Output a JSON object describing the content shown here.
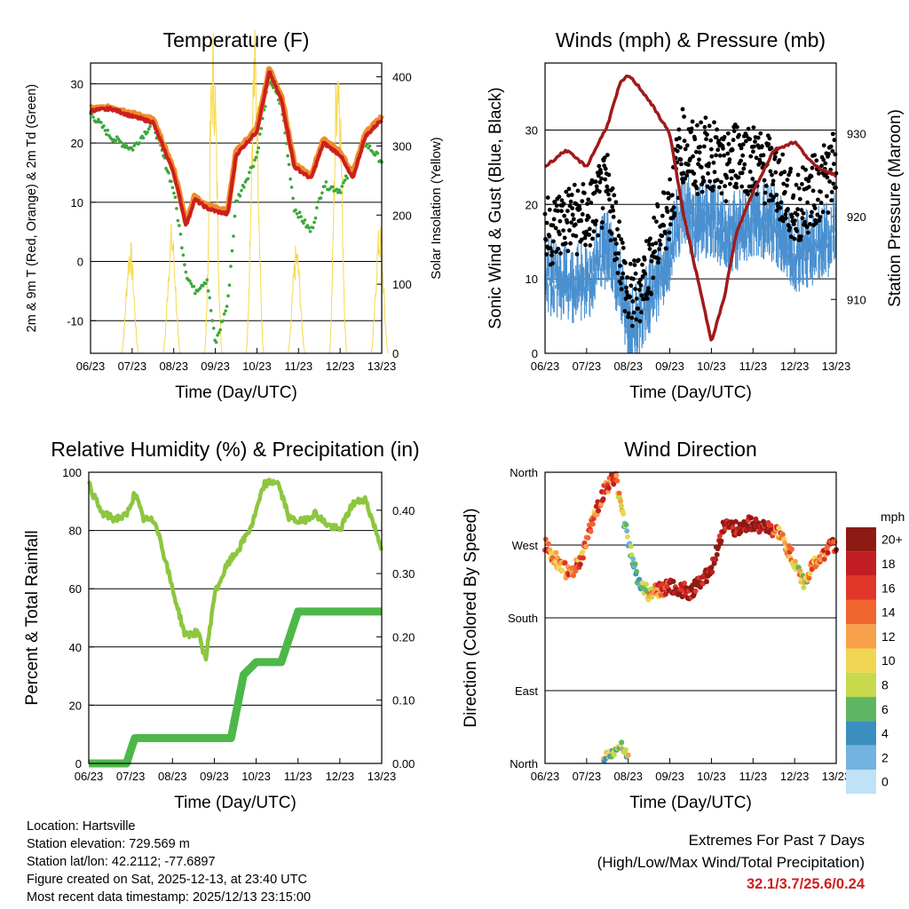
{
  "x_ticks": [
    "06/23",
    "07/23",
    "08/23",
    "09/23",
    "10/23",
    "11/23",
    "12/23",
    "13/23"
  ],
  "x_label": "Time (Day/UTC)",
  "colors": {
    "temp2m": "#cc1f1f",
    "temp9m": "#f08c2a",
    "dewpoint": "#3aa83a",
    "insolation": "#f7d94c",
    "wind": "#4a90d0",
    "gust": "#000000",
    "pressure": "#a01a1a",
    "rh": "#8dc63f",
    "precip": "#4cb848"
  },
  "panels": {
    "temperature": {
      "title": "Temperature (F)",
      "ylabel_left": "2m & 9m T (Red, Orange) & 2m Td (Green)",
      "ylabel_right": "Solar Insolation (Yellow)"
    },
    "winds": {
      "title": "Winds (mph) & Pressure (mb)",
      "ylabel_left": "Sonic Wind & Gust (Blue, Black)",
      "ylabel_right": "Station Pressure (Maroon)"
    },
    "humidity": {
      "title": "Relative Humidity (%) & Precipitation (in)",
      "ylabel_left": "Percent & Total Rainfall"
    },
    "direction": {
      "title": "Wind Direction",
      "ylabel_left": "Direction (Colored By Speed)"
    }
  },
  "chart_data": [
    {
      "type": "line",
      "title": "Temperature (F)",
      "x": [
        0,
        0.5,
        1,
        1.5,
        2,
        2.3,
        2.5,
        2.8,
        3,
        3.3,
        3.5,
        4,
        4.3,
        4.6,
        4.9,
        5.3,
        5.6,
        6,
        6.3,
        6.6,
        7
      ],
      "series": [
        {
          "name": "2m T",
          "values": [
            25.5,
            25.8,
            24.5,
            23.5,
            15,
            6,
            10.5,
            9,
            8.5,
            8,
            18,
            22,
            32,
            27,
            16,
            14,
            20,
            18,
            14,
            21,
            24
          ]
        },
        {
          "name": "9m T",
          "values": [
            25.8,
            26,
            25,
            24,
            15.5,
            6.5,
            11,
            9.5,
            9,
            8.5,
            18.5,
            22.5,
            32.5,
            27.5,
            16.5,
            14.5,
            20.5,
            18.5,
            14.5,
            21.5,
            24.5
          ]
        },
        {
          "name": "2m Td",
          "values": [
            25,
            21,
            19,
            23.5,
            12,
            -2,
            -5,
            -3,
            -14,
            -7,
            10,
            18,
            31,
            26,
            9,
            5,
            13,
            12,
            16,
            20,
            17
          ]
        }
      ],
      "right_series": {
        "name": "Solar Insolation",
        "days": [
          0.95,
          1.95,
          2.95,
          3.95,
          4.95,
          5.95,
          6.95
        ],
        "peaks": [
          140,
          160,
          400,
          400,
          135,
          400,
          160
        ]
      },
      "ylim": [
        -15.5,
        33.5
      ],
      "yticks": [
        -10,
        0,
        10,
        20,
        30
      ],
      "right_ylim": [
        0,
        420
      ],
      "right_yticks": [
        0,
        100,
        200,
        300,
        400
      ]
    },
    {
      "type": "scatter",
      "title": "Winds (mph) & Pressure (mb)",
      "x": [
        0,
        0.5,
        1,
        1.5,
        1.8,
        2,
        2.2,
        2.5,
        3,
        3.3,
        3.6,
        4,
        4.3,
        4.6,
        5,
        5.5,
        6,
        6.5,
        7
      ],
      "series": [
        {
          "name": "Sonic Wind",
          "values": [
            11,
            10,
            10,
            15,
            10,
            4,
            5,
            8,
            14,
            20,
            18,
            19,
            17,
            17,
            19,
            18,
            14,
            15,
            17
          ]
        },
        {
          "name": "Gust",
          "values": [
            16,
            18,
            18,
            22,
            14,
            7,
            8,
            12,
            20,
            28,
            26,
            27,
            24,
            27,
            26,
            24,
            19,
            22,
            25
          ]
        },
        {
          "name": "Station Pressure",
          "values": [
            926,
            928,
            926,
            931,
            936,
            937,
            936,
            934,
            930,
            921,
            914,
            905,
            910,
            918,
            923,
            928,
            929,
            926,
            925
          ]
        }
      ],
      "ylim": [
        0,
        39
      ],
      "yticks": [
        0,
        10,
        20,
        30
      ],
      "right_ylim": [
        903.5,
        938.5
      ],
      "right_yticks": [
        910,
        920,
        930
      ]
    },
    {
      "type": "line",
      "title": "Relative Humidity (%) & Precipitation (in)",
      "x": [
        0,
        0.3,
        0.6,
        0.9,
        1.1,
        1.3,
        1.6,
        2,
        2.3,
        2.6,
        2.8,
        3,
        3.3,
        3.6,
        3.9,
        4.2,
        4.5,
        4.8,
        5.1,
        5.4,
        5.7,
        6,
        6.3,
        6.6,
        7
      ],
      "series": [
        {
          "name": "Relative Humidity",
          "values": [
            96,
            86,
            84,
            85,
            93,
            84,
            83,
            60,
            44,
            45,
            36,
            58,
            68,
            74,
            82,
            96,
            97,
            84,
            83,
            86,
            82,
            80,
            89,
            91,
            74
          ]
        }
      ],
      "precip_steps": {
        "x": [
          0,
          0.9,
          1.1,
          3.4,
          3.7,
          4.0,
          4.6,
          5.0,
          7.0
        ],
        "values": [
          0,
          0,
          0.04,
          0.04,
          0.14,
          0.16,
          0.16,
          0.24,
          0.24
        ]
      },
      "ylim": [
        0,
        100
      ],
      "yticks": [
        0,
        20,
        40,
        60,
        80,
        100
      ],
      "right_ylim": [
        0,
        0.46
      ],
      "right_yticks": [
        0,
        0.1,
        0.2,
        0.3,
        0.4
      ],
      "right_yticklabels": [
        "0.00",
        "0.10",
        "0.20",
        "0.30",
        "0.40"
      ]
    },
    {
      "type": "scatter",
      "title": "Wind Direction",
      "x": [
        0,
        0.3,
        0.6,
        0.9,
        1.1,
        1.4,
        1.7,
        1.9,
        2.2,
        2.5,
        3,
        3.5,
        4,
        4.3,
        4.6,
        5,
        5.3,
        5.6,
        5.9,
        6.2,
        6.5,
        6.8,
        7
      ],
      "series": [
        {
          "name": "Direction (deg)",
          "values": [
            270,
            250,
            232,
            255,
            295,
            335,
            355,
            300,
            230,
            210,
            218,
            212,
            240,
            295,
            290,
            298,
            290,
            285,
            260,
            225,
            248,
            265,
            270
          ]
        },
        {
          "name": "Speed (mph)",
          "values": [
            12,
            14,
            15,
            14,
            14,
            16,
            15,
            6,
            4,
            10,
            19,
            19,
            20,
            20,
            19,
            20,
            20,
            14,
            12,
            9,
            13,
            16,
            17
          ]
        }
      ],
      "secondary_cluster": {
        "x": [
          1.4,
          1.6,
          1.8,
          2.0
        ],
        "directions": [
          5,
          10,
          22,
          8
        ]
      },
      "ylim": [
        0,
        360
      ],
      "yticks": [
        0,
        90,
        180,
        270,
        360
      ],
      "yticklabels": [
        "North",
        "East",
        "South",
        "West",
        "North"
      ],
      "colorbar": {
        "title": "mph",
        "labels": [
          "20+",
          "18",
          "16",
          "14",
          "12",
          "10",
          "8",
          "6",
          "4",
          "2",
          "0"
        ],
        "colors": [
          "#8e1a14",
          "#c11d22",
          "#e0362a",
          "#f1652f",
          "#f7a14a",
          "#f0d553",
          "#c8d94c",
          "#5eb562",
          "#3a8fc0",
          "#72b3e0",
          "#bfe2f7"
        ]
      }
    }
  ],
  "info": {
    "location": "Location: Hartsville",
    "elevation": "Station elevation: 729.569 m",
    "latlon": "Station lat/lon: 42.2112; -77.6897",
    "created": "Figure created on Sat, 2025-12-13, at 23:40 UTC",
    "recent": "Most recent data timestamp: 2025/12/13 23:15:00"
  },
  "extremes": {
    "title": "Extremes For Past 7 Days",
    "subtitle": "(High/Low/Max Wind/Total Precipitation)",
    "values": "32.1/3.7/25.6/0.24"
  }
}
